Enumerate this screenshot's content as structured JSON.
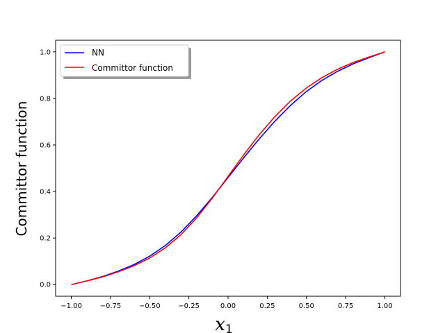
{
  "chart_data": {
    "type": "line",
    "title": "",
    "xlabel": "x",
    "xlabel_subscript": "1",
    "ylabel": "Committor function",
    "xlim": [
      -1.1,
      1.1
    ],
    "ylim": [
      -0.05,
      1.05
    ],
    "xticks": [
      -1.0,
      -0.75,
      -0.5,
      -0.25,
      0.0,
      0.25,
      0.5,
      0.75,
      1.0
    ],
    "xtick_labels": [
      "−1.00",
      "−0.75",
      "−0.50",
      "−0.25",
      "0.00",
      "0.25",
      "0.50",
      "0.75",
      "1.00"
    ],
    "yticks": [
      0.0,
      0.2,
      0.4,
      0.6,
      0.8,
      1.0
    ],
    "ytick_labels": [
      "0.0",
      "0.2",
      "0.4",
      "0.6",
      "0.8",
      "1.0"
    ],
    "grid": false,
    "legend_placement": "top-left",
    "x": [
      -1.0,
      -0.9,
      -0.8,
      -0.7,
      -0.6,
      -0.5,
      -0.4,
      -0.3,
      -0.2,
      -0.1,
      0.0,
      0.1,
      0.2,
      0.3,
      0.4,
      0.5,
      0.6,
      0.7,
      0.8,
      0.9,
      1.0
    ],
    "series": [
      {
        "name": "NN",
        "color": "#0000ff",
        "values": [
          0.0,
          0.016,
          0.035,
          0.058,
          0.086,
          0.122,
          0.168,
          0.226,
          0.296,
          0.375,
          0.46,
          0.545,
          0.627,
          0.703,
          0.771,
          0.83,
          0.878,
          0.917,
          0.949,
          0.975,
          1.0
        ]
      },
      {
        "name": "Committor function",
        "color": "#ff0000",
        "values": [
          0.0,
          0.016,
          0.033,
          0.055,
          0.081,
          0.114,
          0.158,
          0.215,
          0.287,
          0.372,
          0.465,
          0.558,
          0.645,
          0.723,
          0.79,
          0.845,
          0.89,
          0.926,
          0.955,
          0.978,
          1.0
        ]
      }
    ]
  }
}
